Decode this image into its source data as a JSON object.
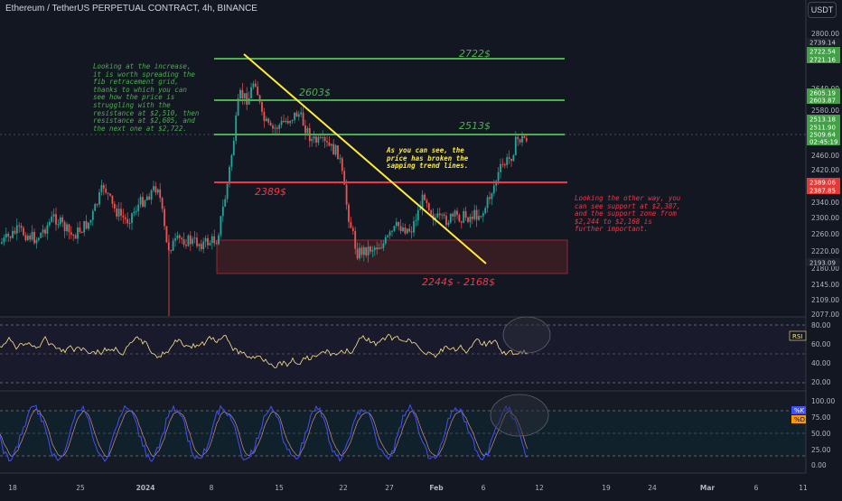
{
  "header": {
    "title": "Ethereum / TetherUS PERPETUAL CONTRACT, 4h, BINANCE",
    "currency_button": "USDT"
  },
  "colors": {
    "bg": "#131722",
    "bull": "#26a69a",
    "bear": "#ef5350",
    "green_line": "#4caf50",
    "red_line": "#f23645",
    "yellow": "#ffeb3b",
    "rsi": "#ffe58f",
    "stoch_k": "#3f51f5",
    "stoch_d": "#d48a8a"
  },
  "annotations": {
    "level_2722": "2722$",
    "level_2603": "2603$",
    "level_2513": "2513$",
    "level_2389": "2389$",
    "support_zone": "2244$ - 2168$",
    "note_left": "Looking at the increase, it is worth spreading the fib retracement grid, thanks to which you can see how the price is struggling with the resistance at $2,510, then resistance at $2,605, and the next one at $2,722.",
    "note_mid": "As you can see, the price has broken the sapping trend lines.",
    "note_right": "Looking the other way, you can see support at $2,387, and the support zone from $2,244 to $2,168 is further important."
  },
  "price_axis": {
    "ticks": [
      "2800.00",
      "2640.00",
      "2580.00",
      "2540.00",
      "2460.00",
      "2420.00",
      "2380.00",
      "2340.00",
      "2300.00",
      "2260.00",
      "2220.00",
      "2180.00",
      "2145.00",
      "2109.00",
      "2077.00"
    ],
    "tags": [
      {
        "text": "2739.14",
        "kind": "dark"
      },
      {
        "text": "2722.54",
        "kind": "green"
      },
      {
        "text": "2721.16",
        "kind": "green"
      },
      {
        "text": "2605.19",
        "kind": "green"
      },
      {
        "text": "2603.87",
        "kind": "green"
      },
      {
        "text": "2513.18",
        "kind": "green"
      },
      {
        "text": "2511.90",
        "kind": "green"
      },
      {
        "text": "2509.64",
        "kind": "green"
      },
      {
        "text": "02:45:19",
        "kind": "green"
      },
      {
        "text": "2389.06",
        "kind": "red"
      },
      {
        "text": "2387.85",
        "kind": "red"
      },
      {
        "text": "2193.09",
        "kind": "dark"
      }
    ]
  },
  "rsi_axis": {
    "ticks": [
      "80.00",
      "60.00",
      "40.00",
      "20.00"
    ],
    "label": "RSI"
  },
  "stoch_axis": {
    "ticks": [
      "100.00",
      "75.00",
      "50.00",
      "25.00",
      "0.00"
    ],
    "label_k": "%K",
    "label_d": "%D"
  },
  "time_axis": [
    "18",
    "25",
    "2024",
    "8",
    "15",
    "22",
    "27",
    "Feb",
    "6",
    "12",
    "19",
    "24",
    "Mar",
    "6",
    "11"
  ]
}
